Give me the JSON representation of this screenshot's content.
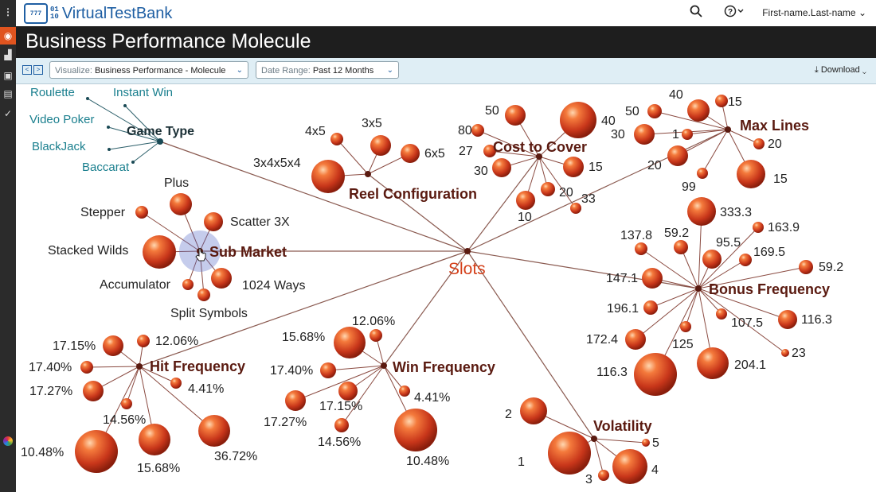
{
  "app": {
    "logo_text": "VirtualTestBank",
    "logo_mark": "777",
    "logo_bin_top": "01",
    "logo_bin_bottom": "10",
    "user": "First-name.Last-name"
  },
  "page": {
    "title": "Business Performance Molecule"
  },
  "toolbar": {
    "visualize_label": "Visualize:",
    "visualize_value": "Business Performance - Molecule",
    "date_label": "Date Range:",
    "date_value": "Past 12 Months",
    "download": "Download"
  },
  "icons": {
    "search": "search-icon",
    "help": "help-icon",
    "download": "download-icon"
  },
  "colors": {
    "accent": "#1f5fa3",
    "node": "#d4401a",
    "hub": "#5a1a10",
    "center": "#d4401a",
    "game_type": "#1a7f8e"
  },
  "chart_data": {
    "type": "network",
    "center": "Slots",
    "clusters": [
      {
        "name": "Game Type",
        "children": [
          "Roulette",
          "Instant Win",
          "Video Poker",
          "BlackJack",
          "Baccarat"
        ]
      },
      {
        "name": "Reel Configuration",
        "children": [
          "4x5",
          "3x5",
          "6x5",
          "3x4x5x4"
        ]
      },
      {
        "name": "Cost to Cover",
        "children": [
          "50",
          "80",
          "40",
          "27",
          "30",
          "15",
          "20",
          "10",
          "33"
        ]
      },
      {
        "name": "Max Lines",
        "children": [
          "40",
          "15",
          "50",
          "30",
          "1",
          "20",
          "20",
          "99",
          "15"
        ]
      },
      {
        "name": "Sub Market",
        "children": [
          "Plus",
          "Stepper",
          "Scatter 3X",
          "Stacked Wilds",
          "Accumulator",
          "1024 Ways",
          "Split Symbols"
        ]
      },
      {
        "name": "Bonus Frequency",
        "children": [
          "333.3",
          "163.9",
          "137.8",
          "59.2",
          "95.5",
          "169.5",
          "59.2",
          "147.1",
          "196.1",
          "107.5",
          "116.3",
          "172.4",
          "125",
          "23",
          "116.3",
          "204.1"
        ]
      },
      {
        "name": "Hit Frequency",
        "children": [
          "17.15%",
          "12.06%",
          "17.40%",
          "17.27%",
          "4.41%",
          "14.56%",
          "10.48%",
          "15.68%",
          "36.72%"
        ]
      },
      {
        "name": "Win Frequency",
        "children": [
          "12.06%",
          "15.68%",
          "17.40%",
          "17.15%",
          "4.41%",
          "17.27%",
          "14.56%",
          "10.48%"
        ]
      },
      {
        "name": "Volatility",
        "children": [
          "2",
          "5",
          "1",
          "3",
          "4"
        ]
      }
    ]
  }
}
